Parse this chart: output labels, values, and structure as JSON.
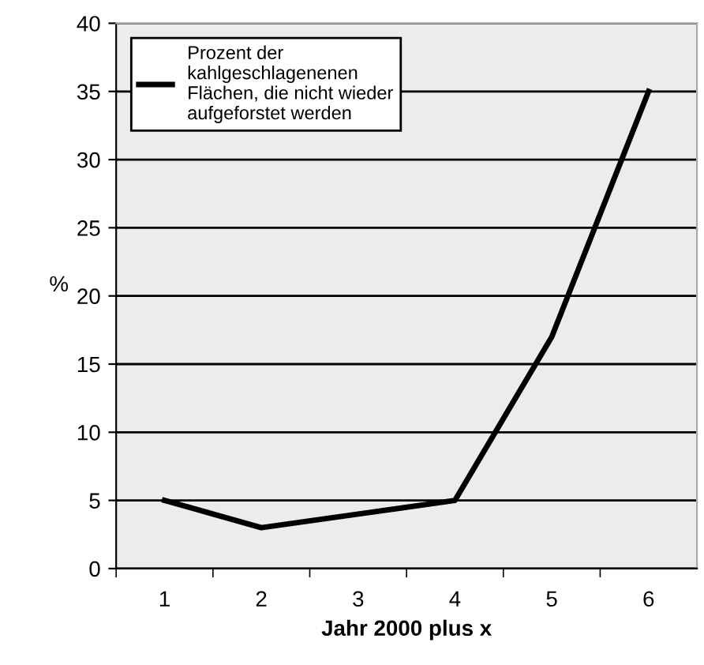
{
  "chart_data": {
    "type": "line",
    "xlabel": "Jahr 2000 plus x",
    "ylabel": "%",
    "categories": [
      "1",
      "2",
      "3",
      "4",
      "5",
      "6"
    ],
    "series": [
      {
        "name": "Prozent der\nkahlgeschlagenenen\nFlächen, die nicht wieder\naufgeforstet werden",
        "color": "#000000",
        "values": [
          5,
          3,
          4,
          5,
          17,
          35
        ]
      }
    ],
    "ylim": [
      0,
      40
    ],
    "yticks": [
      0,
      5,
      10,
      15,
      20,
      25,
      30,
      35,
      40
    ],
    "grid": "y",
    "legend": "top left",
    "marker": "none",
    "line_style": "solid"
  }
}
